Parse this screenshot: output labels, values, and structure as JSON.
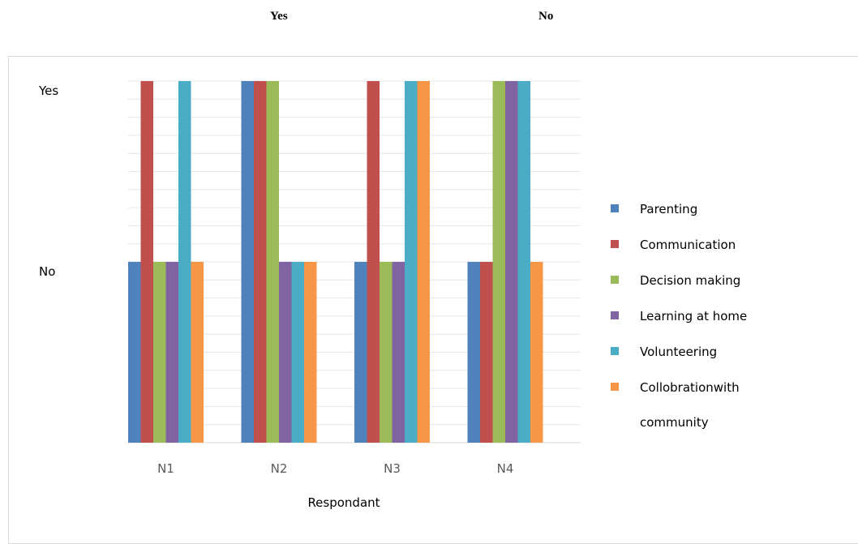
{
  "header": {
    "yes_label": "Yes",
    "no_label": "No"
  },
  "chart_data": {
    "type": "bar",
    "categories": [
      "N1",
      "N2",
      "N3",
      "N4"
    ],
    "xlabel": "Respondant",
    "ylabel": "",
    "y_tick_labels": [
      {
        "label": "Yes",
        "value": 2
      },
      {
        "label": "No",
        "value": 1
      }
    ],
    "ylim": [
      0,
      2
    ],
    "grid": true,
    "legend_position": "right",
    "series": [
      {
        "name": "Parenting",
        "color": "#4F81BD",
        "values": [
          1,
          2,
          1,
          1
        ]
      },
      {
        "name": "Communication",
        "color": "#C0504D",
        "values": [
          2,
          2,
          2,
          1
        ]
      },
      {
        "name": "Decision making",
        "color": "#9BBB59",
        "values": [
          1,
          2,
          1,
          2
        ]
      },
      {
        "name": "Learning at home",
        "color": "#8064A2",
        "values": [
          1,
          1,
          1,
          2
        ]
      },
      {
        "name": "Volunteering",
        "color": "#4BACC6",
        "values": [
          2,
          1,
          2,
          2
        ]
      },
      {
        "name": "Collobrationwith community",
        "legend_lines": [
          "Collobrationwith",
          "community"
        ],
        "color": "#F79646",
        "values": [
          1,
          1,
          2,
          1
        ]
      }
    ]
  }
}
